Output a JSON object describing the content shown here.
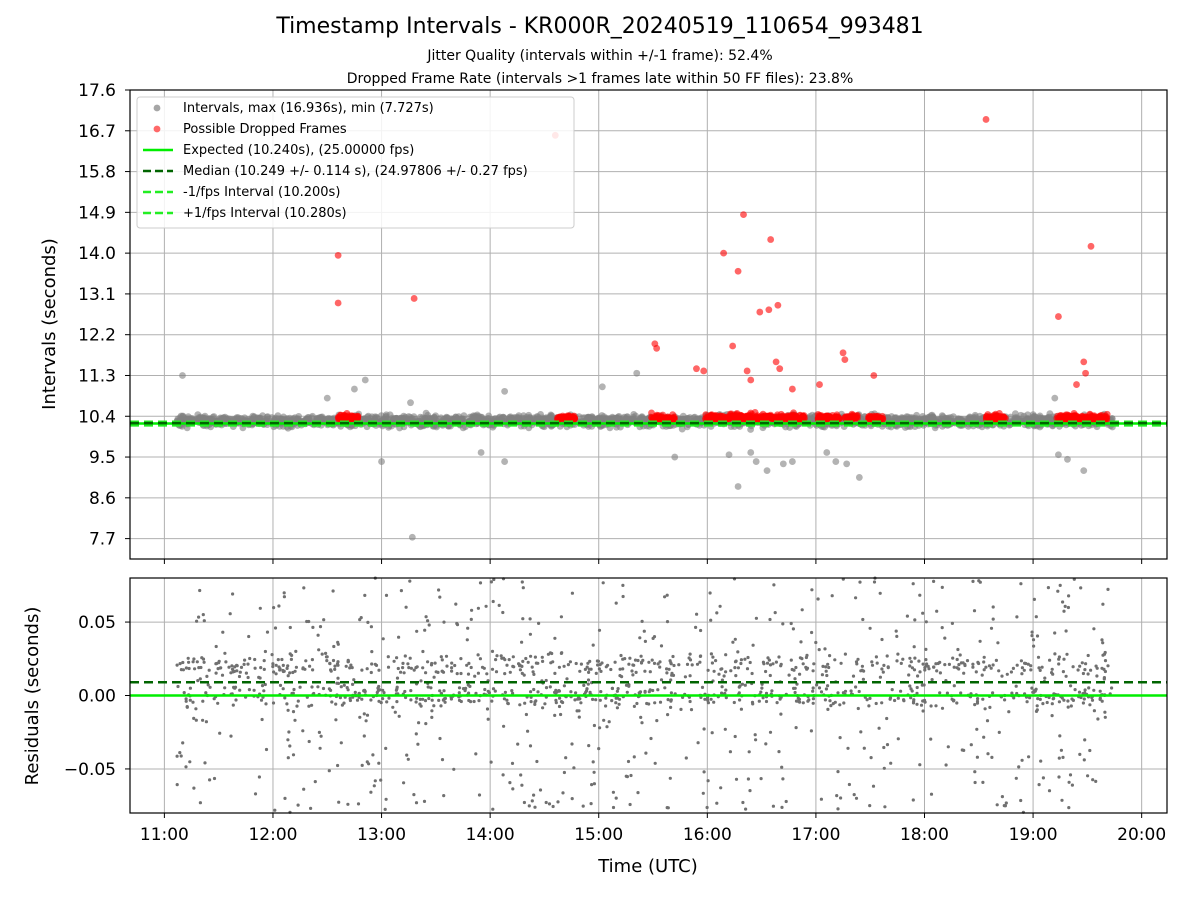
{
  "title": "Timestamp Intervals - KR000R_20240519_110654_993481",
  "subtitle1": "Jitter Quality (intervals within +/-1 frame): 52.4%",
  "subtitle2": "Dropped Frame Rate (intervals >1 frames late within 50 FF files): 23.8%",
  "colors": {
    "interval_points": "#808080",
    "dropped_points": "#ff0000",
    "expected_line": "#00ee00",
    "median_line": "#006400",
    "fps_band_lines": "#22ee22",
    "residual_points": "#707070",
    "grid": "#b0b0b0"
  },
  "chart_data": [
    {
      "type": "scatter",
      "panel": "top",
      "xlabel": "",
      "ylabel": "Intervals (seconds)",
      "ylim": [
        7.25,
        17.6
      ],
      "xlim": [
        "10:41",
        "20:14"
      ],
      "x_unit": "time (UTC)",
      "grid": true,
      "yticks": [
        "7.7",
        "8.6",
        "9.5",
        "10.4",
        "11.3",
        "12.2",
        "13.1",
        "14.0",
        "14.9",
        "15.8",
        "16.7",
        "17.6"
      ],
      "legend": {
        "placement": "top-left",
        "entries": [
          {
            "label": "Intervals, max (16.936s), min (7.727s)",
            "kind": "point",
            "color": "#909090"
          },
          {
            "label": "Possible Dropped Frames",
            "kind": "point",
            "color": "#ff4444"
          },
          {
            "label": "Expected (10.240s), (25.00000 fps)",
            "kind": "solid",
            "color": "#00ee00"
          },
          {
            "label": "Median (10.249 +/- 0.114 s), (24.97806 +/- 0.27 fps)",
            "kind": "dashed",
            "color": "#006400"
          },
          {
            "label": "-1/fps Interval (10.200s)",
            "kind": "dashed",
            "color": "#22ee22"
          },
          {
            "label": "+1/fps Interval (10.280s)",
            "kind": "dashed",
            "color": "#22ee22"
          }
        ]
      },
      "reference_lines": [
        {
          "name": "Expected",
          "y": 10.24,
          "style": "solid"
        },
        {
          "name": "Median",
          "y": 10.249,
          "style": "dashed"
        },
        {
          "name": "-1/fps Interval",
          "y": 10.2,
          "style": "dashed"
        },
        {
          "name": "+1/fps Interval",
          "y": 10.28,
          "style": "dashed"
        }
      ],
      "series": [
        {
          "name": "Intervals",
          "description": "dense band of ~3000 points between about 10.0 and 10.6 s from 11:07 to 19:44; notable outliers listed",
          "outliers": [
            {
              "x": "11:10",
              "y": 11.3
            },
            {
              "x": "12:51",
              "y": 11.2
            },
            {
              "x": "12:45",
              "y": 11.0
            },
            {
              "x": "13:16",
              "y": 10.7
            },
            {
              "x": "14:08",
              "y": 10.95
            },
            {
              "x": "15:02",
              "y": 11.05
            },
            {
              "x": "15:21",
              "y": 11.35
            },
            {
              "x": "13:17",
              "y": 7.73
            },
            {
              "x": "13:00",
              "y": 9.4
            },
            {
              "x": "13:55",
              "y": 9.6
            },
            {
              "x": "14:08",
              "y": 9.4
            },
            {
              "x": "15:42",
              "y": 9.5
            },
            {
              "x": "16:12",
              "y": 9.55
            },
            {
              "x": "16:17",
              "y": 8.85
            },
            {
              "x": "16:24",
              "y": 9.6
            },
            {
              "x": "16:27",
              "y": 9.4
            },
            {
              "x": "16:42",
              "y": 9.35
            },
            {
              "x": "16:47",
              "y": 9.4
            },
            {
              "x": "17:11",
              "y": 9.4
            },
            {
              "x": "17:17",
              "y": 9.35
            },
            {
              "x": "17:24",
              "y": 9.05
            },
            {
              "x": "17:06",
              "y": 9.6
            },
            {
              "x": "19:14",
              "y": 9.55
            },
            {
              "x": "19:19",
              "y": 9.45
            },
            {
              "x": "19:28",
              "y": 9.2
            },
            {
              "x": "16:33",
              "y": 9.2
            },
            {
              "x": "19:12",
              "y": 10.8
            },
            {
              "x": "12:30",
              "y": 10.8
            }
          ]
        },
        {
          "name": "Possible Dropped Frames",
          "clusters": [
            {
              "from": "12:36",
              "to": "12:47"
            },
            {
              "from": "14:37",
              "to": "14:47"
            },
            {
              "from": "15:29",
              "to": "15:42"
            },
            {
              "from": "15:59",
              "to": "16:54"
            },
            {
              "from": "17:01",
              "to": "17:13"
            },
            {
              "from": "17:16",
              "to": "17:23"
            },
            {
              "from": "17:29",
              "to": "17:37"
            },
            {
              "from": "18:34",
              "to": "18:45"
            },
            {
              "from": "19:13",
              "to": "19:41"
            }
          ],
          "outliers": [
            {
              "x": "12:36",
              "y": 13.95
            },
            {
              "x": "12:36",
              "y": 12.9
            },
            {
              "x": "13:18",
              "y": 13.0
            },
            {
              "x": "14:36",
              "y": 16.6
            },
            {
              "x": "15:31",
              "y": 12.0
            },
            {
              "x": "15:32",
              "y": 11.9
            },
            {
              "x": "15:54",
              "y": 11.45
            },
            {
              "x": "15:58",
              "y": 11.4
            },
            {
              "x": "16:09",
              "y": 14.0
            },
            {
              "x": "16:14",
              "y": 11.95
            },
            {
              "x": "16:17",
              "y": 13.6
            },
            {
              "x": "16:20",
              "y": 14.85
            },
            {
              "x": "16:22",
              "y": 11.4
            },
            {
              "x": "16:24",
              "y": 11.2
            },
            {
              "x": "16:29",
              "y": 12.7
            },
            {
              "x": "16:34",
              "y": 12.75
            },
            {
              "x": "16:35",
              "y": 14.3
            },
            {
              "x": "16:39",
              "y": 12.85
            },
            {
              "x": "16:38",
              "y": 11.6
            },
            {
              "x": "16:40",
              "y": 11.45
            },
            {
              "x": "16:47",
              "y": 11.0
            },
            {
              "x": "17:02",
              "y": 11.1
            },
            {
              "x": "17:15",
              "y": 11.8
            },
            {
              "x": "17:16",
              "y": 11.65
            },
            {
              "x": "17:32",
              "y": 11.3
            },
            {
              "x": "18:34",
              "y": 16.95
            },
            {
              "x": "19:14",
              "y": 12.6
            },
            {
              "x": "19:24",
              "y": 11.1
            },
            {
              "x": "19:28",
              "y": 11.6
            },
            {
              "x": "19:29",
              "y": 11.35
            },
            {
              "x": "19:32",
              "y": 14.15
            }
          ]
        }
      ]
    },
    {
      "type": "scatter",
      "panel": "bottom",
      "xlabel": "Time (UTC)",
      "ylabel": "Residuals (seconds)",
      "ylim": [
        -0.08,
        0.08
      ],
      "xlim": [
        "10:41",
        "20:14"
      ],
      "grid": true,
      "xticks": [
        "11:00",
        "12:00",
        "13:00",
        "14:00",
        "15:00",
        "16:00",
        "17:00",
        "18:00",
        "19:00",
        "20:00"
      ],
      "yticks": [
        "−0.05",
        "0.00",
        "0.05"
      ],
      "reference_lines": [
        {
          "name": "Expected",
          "y": 0.0,
          "style": "solid"
        },
        {
          "name": "Median",
          "y": 0.009,
          "style": "dashed"
        }
      ],
      "series": [
        {
          "name": "Residuals",
          "description": "~1500 small points spread across the full range -0.08 to 0.08, densest near 0.0 and 0.02, from 11:07 to 19:44"
        }
      ]
    }
  ]
}
